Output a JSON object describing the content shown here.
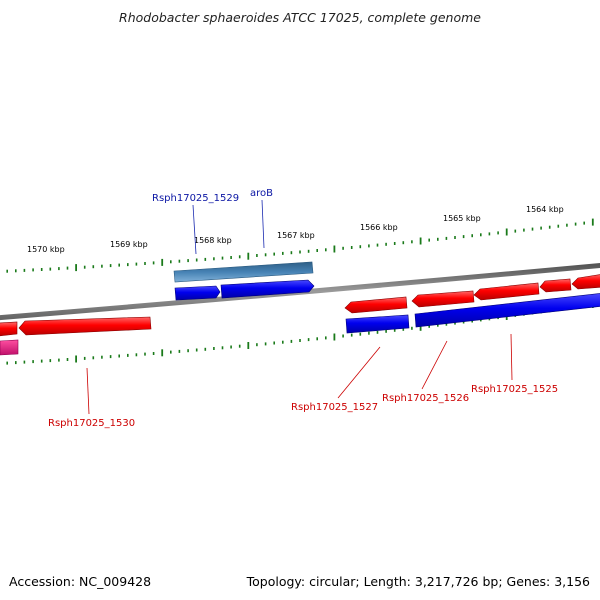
{
  "title": "Rhodobacter sphaeroides ATCC 17025, complete genome",
  "footer": {
    "accession": "Accession: NC_009428",
    "summary": "Topology: circular; Length: 3,217,726 bp; Genes: 3,156"
  },
  "scale_labels": [
    "1570 kbp",
    "1569 kbp",
    "1568 kbp",
    "1567 kbp",
    "1566 kbp",
    "1565 kbp",
    "1564 kbp"
  ],
  "gene_labels": {
    "rsph_1529": "Rsph17025_1529",
    "aroB": "aroB",
    "rsph_1530": "Rsph17025_1530",
    "rsph_1527": "Rsph17025_1527",
    "rsph_1526": "Rsph17025_1526",
    "rsph_1525": "Rsph17025_1525"
  },
  "colors": {
    "forward_cds": "#0000ee",
    "forward_gene": "#4682b4",
    "reverse_cds": "#ff0000",
    "pink_feature": "#e0157a",
    "tick": "#1a7a1a",
    "backbone": "#7a7a7a",
    "label_forward": "#0b16a4",
    "label_reverse": "#cc0000"
  }
}
